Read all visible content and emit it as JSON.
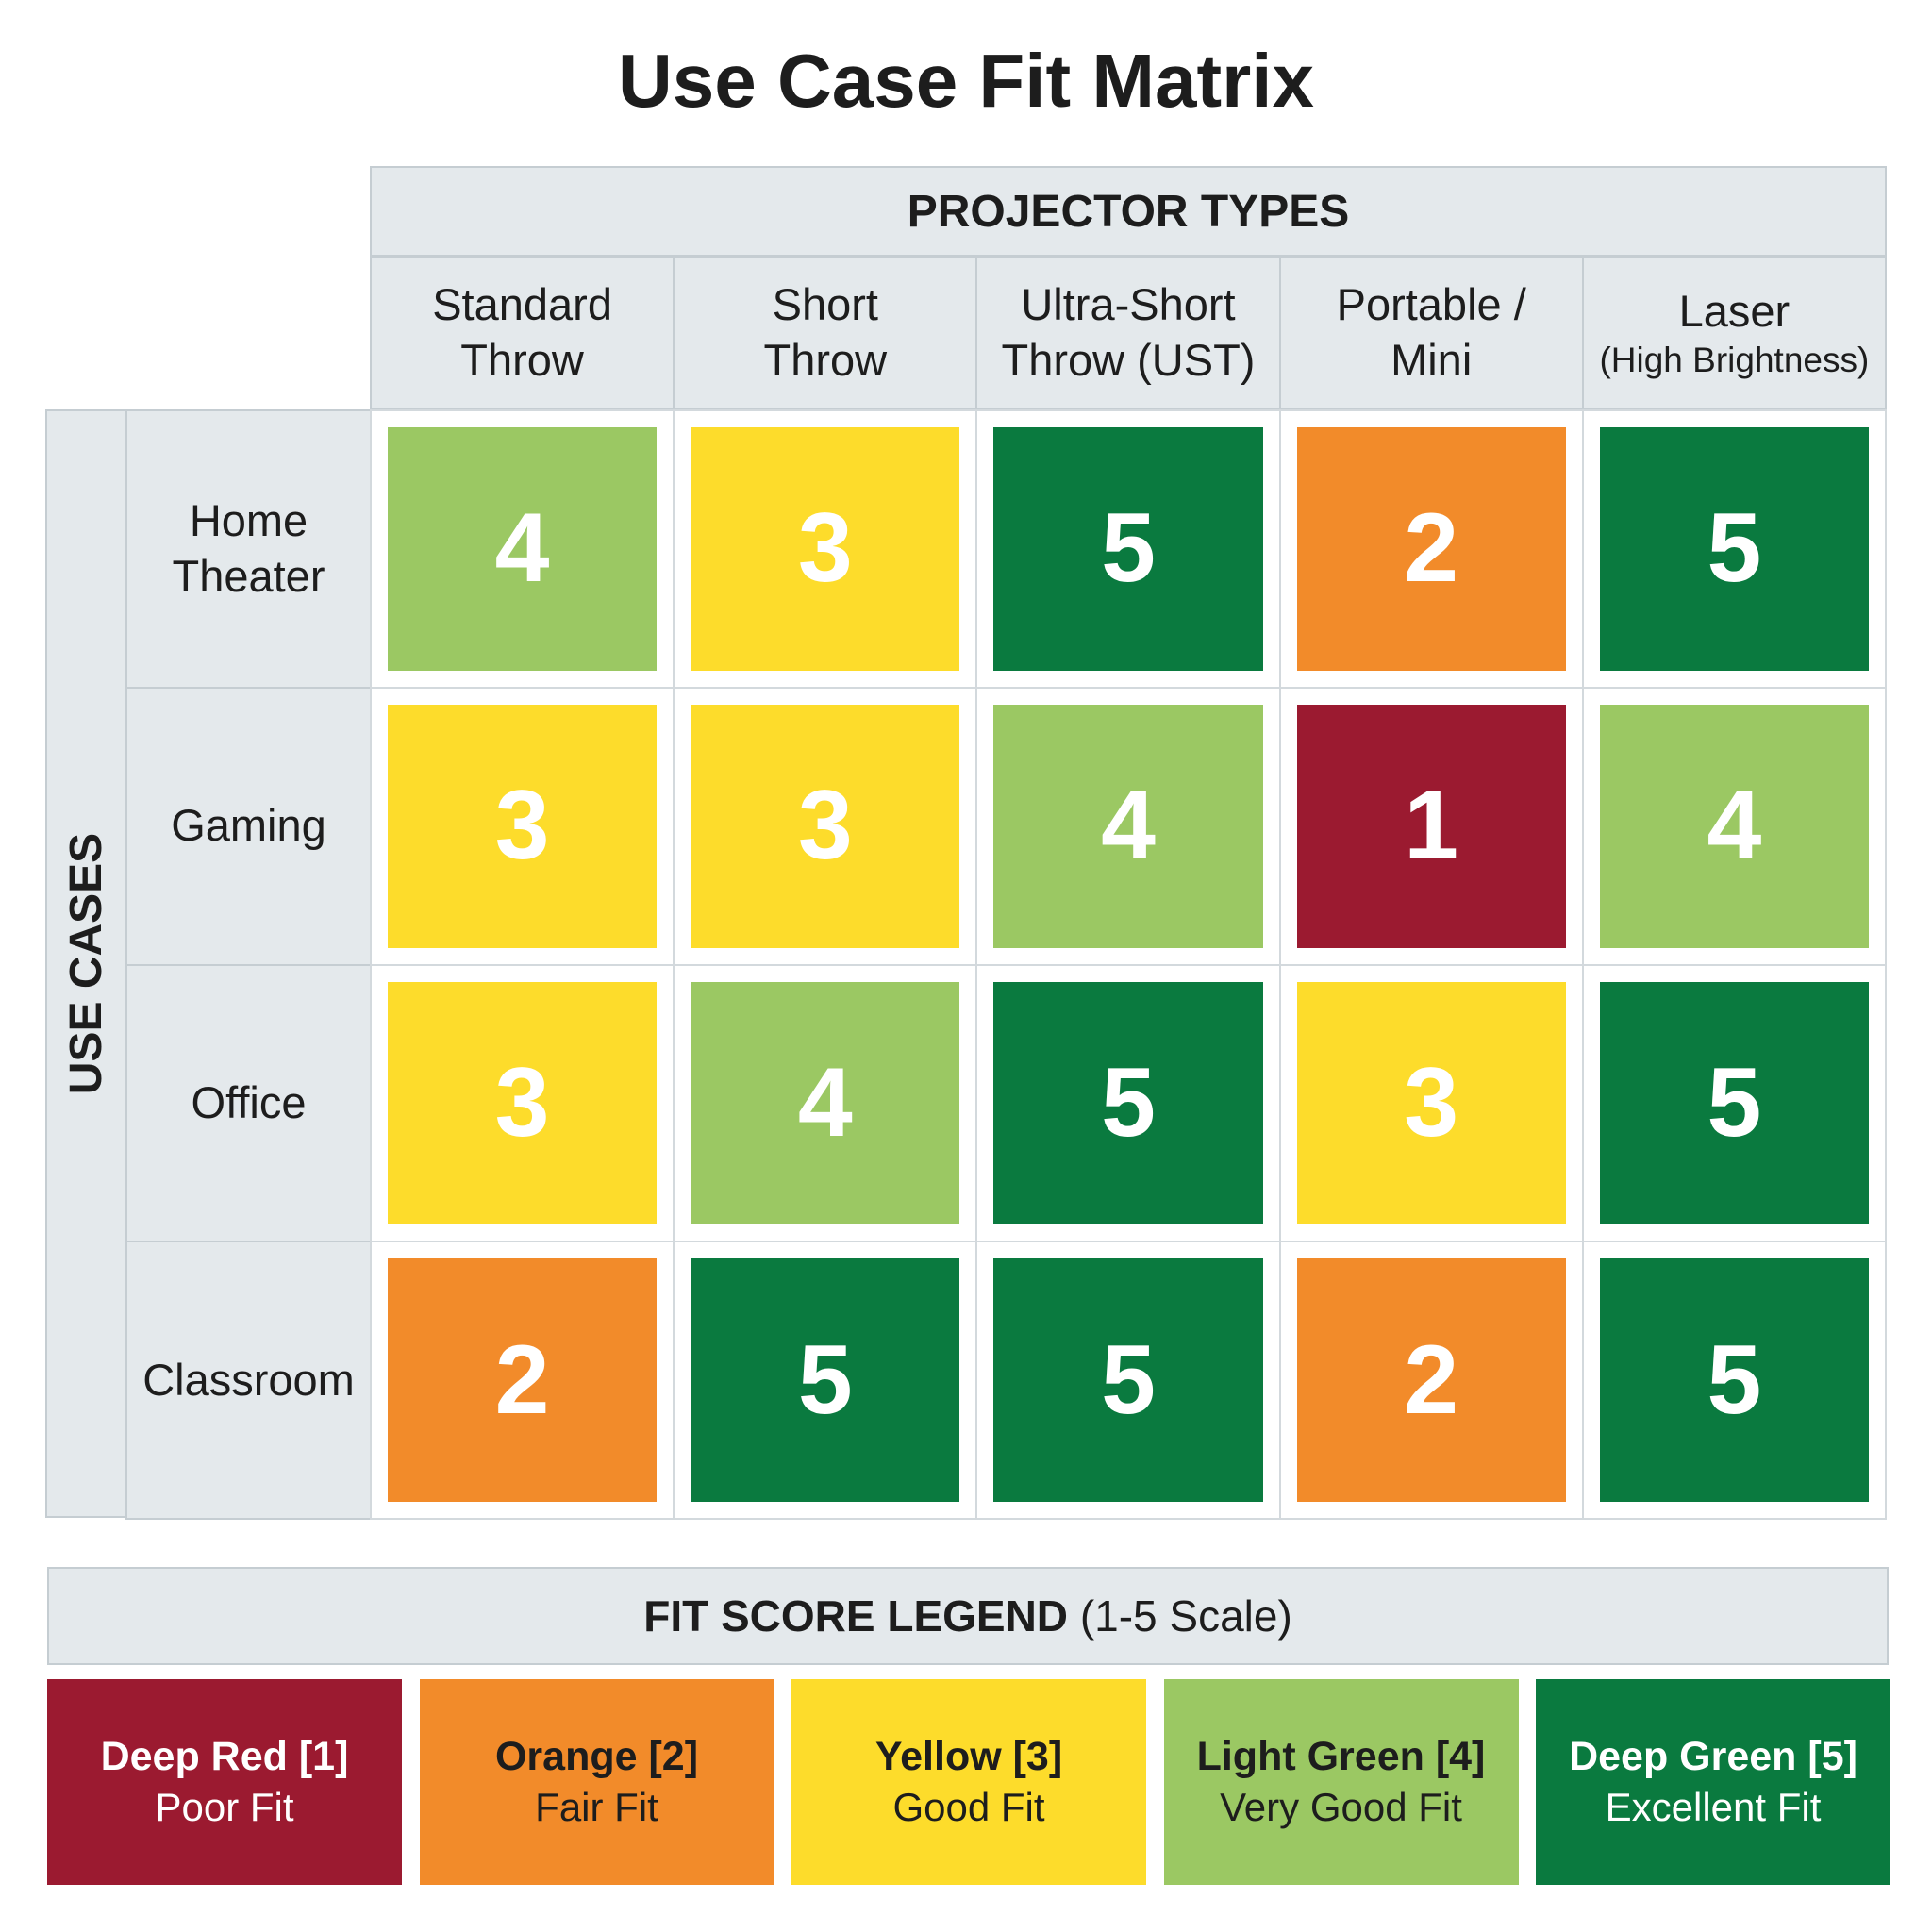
{
  "title": "Use Case Fit Matrix",
  "column_group": "PROJECTOR TYPES",
  "row_group": "USE CASES",
  "columns": [
    {
      "lines": [
        "Standard",
        "Throw"
      ]
    },
    {
      "lines": [
        "Short",
        "Throw"
      ]
    },
    {
      "lines": [
        "Ultra-Short",
        "Throw (UST)"
      ]
    },
    {
      "lines": [
        "Portable /",
        "Mini"
      ]
    },
    {
      "lines": [
        "Laser"
      ],
      "note": "(High Brightness)"
    }
  ],
  "rows": [
    {
      "lines": [
        "Home",
        "Theater"
      ],
      "values": [
        4,
        3,
        5,
        2,
        5
      ]
    },
    {
      "lines": [
        "Gaming"
      ],
      "values": [
        3,
        3,
        4,
        1,
        4
      ]
    },
    {
      "lines": [
        "Office"
      ],
      "values": [
        3,
        4,
        5,
        3,
        5
      ]
    },
    {
      "lines": [
        "Classroom"
      ],
      "values": [
        2,
        5,
        5,
        2,
        5
      ]
    }
  ],
  "legend": {
    "title": "FIT SCORE LEGEND",
    "subtitle": "(1-5 Scale)",
    "items": [
      {
        "score": 1,
        "label": "Deep Red [1]",
        "description": "Poor Fit",
        "color": "#9b1a30",
        "text_color": "#ffffff"
      },
      {
        "score": 2,
        "label": "Orange [2]",
        "description": "Fair Fit",
        "color": "#f28b2a",
        "text_color": "#1d1d1d"
      },
      {
        "score": 3,
        "label": "Yellow [3]",
        "description": "Good Fit",
        "color": "#fddc2b",
        "text_color": "#1d1d1d"
      },
      {
        "score": 4,
        "label": "Light Green [4]",
        "description": "Very Good Fit",
        "color": "#9bc863",
        "text_color": "#1d1d1d"
      },
      {
        "score": 5,
        "label": "Deep Green [5]",
        "description": "Excellent Fit",
        "color": "#0a7a3f",
        "text_color": "#ffffff"
      }
    ]
  }
}
